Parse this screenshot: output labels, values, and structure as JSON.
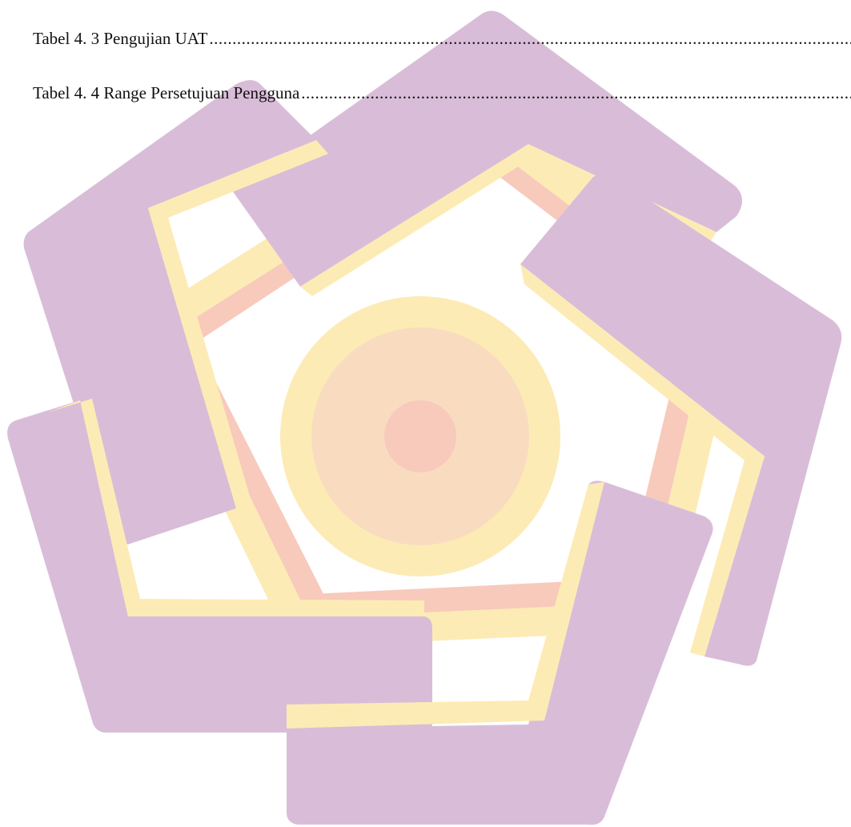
{
  "toc": {
    "entries": [
      {
        "label": "Tabel 4. 3 Pengujian UAT"
      },
      {
        "label": "Tabel 4. 4 Range Persetujuan Pengguna"
      }
    ]
  },
  "watermark": {
    "icon": "university-logo-watermark",
    "colors": {
      "purple": "#D9BDD8",
      "purple_dark": "#D3BEDC",
      "yellow": "#FDEBB5",
      "peach": "#F9D8C0",
      "salmon": "#F7CABC"
    }
  }
}
